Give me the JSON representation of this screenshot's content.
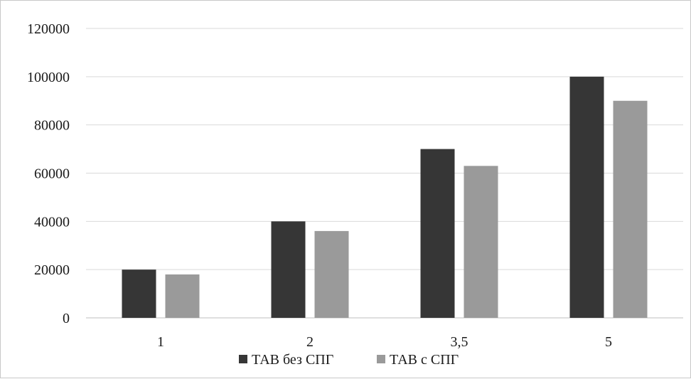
{
  "chart_data": {
    "type": "bar",
    "categories": [
      "1",
      "2",
      "3,5",
      "5"
    ],
    "series": [
      {
        "name": "ТАВ без СПГ",
        "color": "#363636",
        "values": [
          20000,
          40000,
          70000,
          100000
        ]
      },
      {
        "name": "ТАВ с СПГ",
        "color": "#9a9a9a",
        "values": [
          18000,
          36000,
          63000,
          90000
        ]
      }
    ],
    "ylim": [
      0,
      120000
    ],
    "yticks": [
      "0",
      "20000",
      "40000",
      "60000",
      "80000",
      "100000",
      "120000"
    ],
    "grid": true,
    "legend_position": "bottom",
    "title": "",
    "xlabel": "",
    "ylabel": ""
  }
}
